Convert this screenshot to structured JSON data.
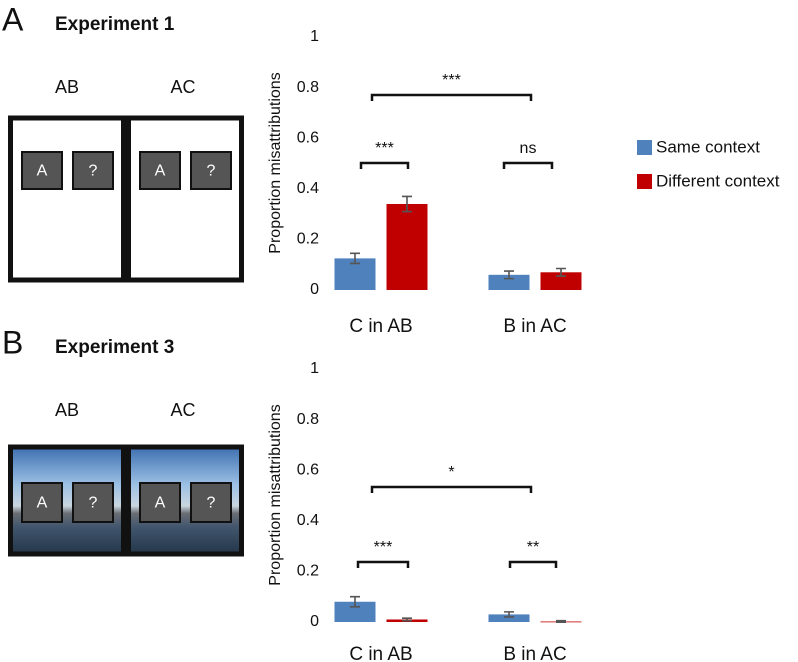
{
  "panels": [
    {
      "letter": "A",
      "title": "Experiment 1",
      "contexts": [
        "AB",
        "AC"
      ],
      "items": [
        "A",
        "?"
      ]
    },
    {
      "letter": "B",
      "title": "Experiment 3",
      "contexts": [
        "AB",
        "AC"
      ],
      "items": [
        "A",
        "?"
      ]
    }
  ],
  "chart_data": [
    {
      "type": "bar",
      "ylabel": "Proportion misattributions",
      "categories": [
        "C in AB",
        "B in AC"
      ],
      "series": [
        {
          "name": "Same context",
          "color": "#4f81bd",
          "values": [
            0.125,
            0.06
          ],
          "errors": [
            0.02,
            0.015
          ]
        },
        {
          "name": "Different context",
          "color": "#c00000",
          "values": [
            0.34,
            0.07
          ],
          "errors": [
            0.03,
            0.015
          ]
        }
      ],
      "ylim": [
        0,
        1
      ],
      "yticks": [
        0,
        0.2,
        0.4,
        0.6,
        0.8,
        1
      ],
      "legend": "right",
      "annotations": [
        "***",
        "***",
        "ns"
      ]
    },
    {
      "type": "bar",
      "ylabel": "Proportion misattributions",
      "categories": [
        "C in AB",
        "B in AC"
      ],
      "series": [
        {
          "color": "#4f81bd",
          "values": [
            0.08,
            0.03
          ],
          "errors": [
            0.02,
            0.01
          ]
        },
        {
          "color": "#c00000",
          "values": [
            0.01,
            0.002
          ],
          "errors": [
            0.005,
            0.003
          ]
        }
      ],
      "ylim": [
        0,
        1
      ],
      "yticks": [
        0,
        0.2,
        0.4,
        0.6,
        0.8,
        1
      ],
      "annotations": [
        "*",
        "***",
        "**"
      ]
    }
  ]
}
